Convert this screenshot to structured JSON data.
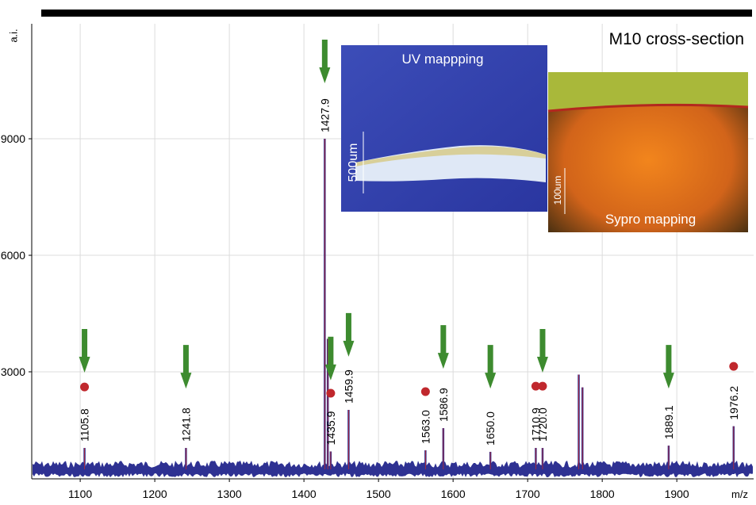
{
  "chart_data": {
    "type": "spectrum",
    "title": "M10 cross-section",
    "y_label": "a.i.",
    "x_label": "m/z",
    "xlim": [
      1035,
      2003
    ],
    "xticks": [
      1100,
      1200,
      1300,
      1400,
      1500,
      1600,
      1700,
      1800,
      1900
    ],
    "ylim": [
      245,
      11960
    ],
    "yticks": [
      3000,
      6000,
      9000
    ],
    "grid": true,
    "peaks": {
      "color": "#2e3192",
      "x": [
        1105.8,
        1241.8,
        1427.9,
        1432,
        1435.9,
        1459.9,
        1563.0,
        1586.9,
        1650.0,
        1710.9,
        1720.0,
        1768.5,
        1773.5,
        1889.1,
        1976.2
      ],
      "values": [
        1040,
        1040,
        9000,
        3850,
        950,
        2020,
        980,
        1550,
        940,
        1040,
        1040,
        2930,
        2600,
        1100,
        1600
      ],
      "peak_labels": [
        "1105.8",
        "1241.8",
        "1427.9",
        null,
        "1435.9",
        "1459.9",
        "1563.0",
        "1586.9",
        "1650.0",
        "1710.9",
        "1720.0",
        null,
        null,
        "1889.1",
        "1976.2"
      ]
    },
    "arrows": {
      "color": "#3d8b2f",
      "x": [
        1105.8,
        1241.8,
        1427.9,
        1435.9,
        1459.9,
        1586.9,
        1650.0,
        1720.0,
        1889.1
      ],
      "y": [
        2980,
        2570,
        10430,
        2780,
        3390,
        3080,
        2570,
        2980,
        2570
      ]
    },
    "dots": {
      "color": "#c0282d",
      "x": [
        1105.8,
        1435.9,
        1563.0,
        1710.9,
        1720.0,
        1976.2
      ],
      "y": [
        2610,
        2450,
        2490,
        2630,
        2630,
        3140
      ]
    },
    "insets": [
      {
        "title": "UV mappping",
        "scale": "500um"
      },
      {
        "title": "Sypro mapping",
        "scale": "100um"
      }
    ]
  }
}
